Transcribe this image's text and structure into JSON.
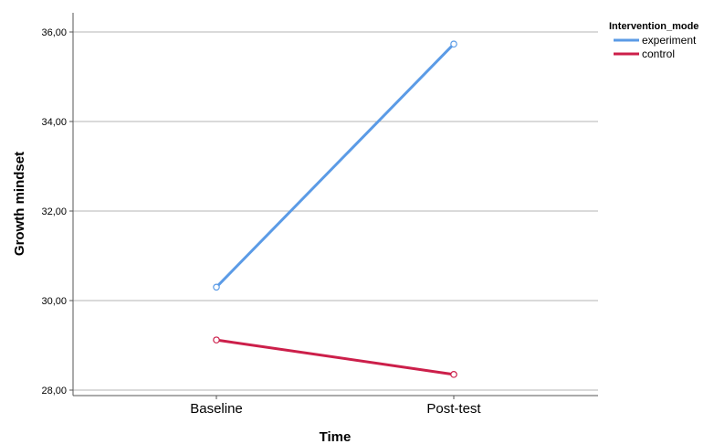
{
  "chart_data": {
    "type": "line",
    "title": "",
    "xlabel": "Time",
    "ylabel": "Growth mindset",
    "categories": [
      "Baseline",
      "Post-test"
    ],
    "ylim": [
      28.0,
      36.0
    ],
    "yticks": [
      "28,00",
      "30,00",
      "32,00",
      "34,00",
      "36,00"
    ],
    "ytick_values": [
      28,
      30,
      32,
      34,
      36
    ],
    "grid": "horizontal",
    "legend": {
      "title": "Intervention_mode",
      "placement": "top-right"
    },
    "series": [
      {
        "name": "experiment",
        "values": [
          30.3,
          35.73
        ],
        "color": "#5b9be6"
      },
      {
        "name": "control",
        "values": [
          29.12,
          28.35
        ],
        "color": "#cc1f4a"
      }
    ]
  }
}
